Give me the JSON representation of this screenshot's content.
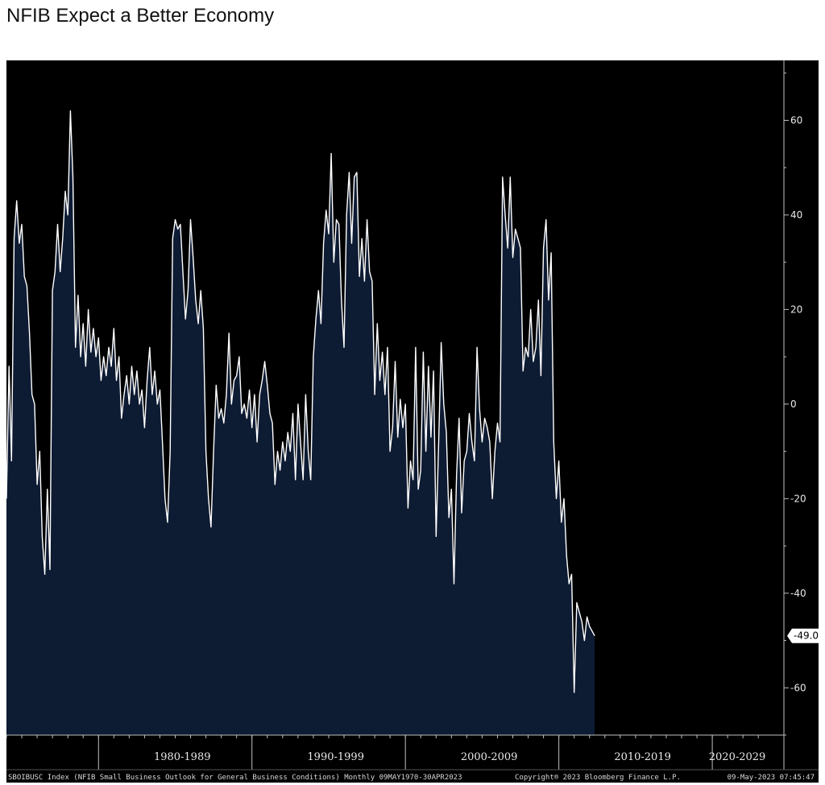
{
  "page": {
    "title": "NFIB Expect a Better Economy"
  },
  "colors": {
    "background": "#000000",
    "area_fill": "#0d1b33",
    "line": "#ffffff",
    "axis": "#bfbfbf",
    "text": "#e8e8e8",
    "last_value_box": "#ffffff"
  },
  "chart_data": {
    "type": "area",
    "title": "",
    "xlabel": "",
    "ylabel": "",
    "x_range": [
      "1974-01",
      "2023-04"
    ],
    "ylim": [
      -70,
      72
    ],
    "y_ticks": [
      -60,
      -40,
      -20,
      0,
      20,
      40,
      60
    ],
    "grid": false,
    "x_groups": [
      {
        "label": "1980-1989",
        "from": "1980-01",
        "to": "1989-12"
      },
      {
        "label": "1990-1999",
        "from": "1990-01",
        "to": "1999-12"
      },
      {
        "label": "2000-2009",
        "from": "2000-01",
        "to": "2009-12"
      },
      {
        "label": "2010-2019",
        "from": "2010-01",
        "to": "2019-12"
      },
      {
        "label": "2020-2029",
        "from": "2020-01",
        "to": "2029-12"
      }
    ],
    "last_value": {
      "label": "-49.0",
      "value": -49.0
    },
    "series": [
      {
        "values": [
          [
            "1974-01",
            -20
          ],
          [
            "1974-03",
            8
          ],
          [
            "1974-05",
            -12
          ],
          [
            "1974-07",
            35
          ],
          [
            "1974-09",
            43
          ],
          [
            "1974-11",
            34
          ],
          [
            "1975-01",
            38
          ],
          [
            "1975-03",
            27
          ],
          [
            "1975-05",
            25
          ],
          [
            "1975-07",
            15
          ],
          [
            "1975-09",
            2
          ],
          [
            "1975-11",
            0
          ],
          [
            "1976-01",
            -17
          ],
          [
            "1976-03",
            -10
          ],
          [
            "1976-05",
            -28
          ],
          [
            "1976-07",
            -36
          ],
          [
            "1976-09",
            -18
          ],
          [
            "1976-11",
            -35
          ],
          [
            "1977-01",
            24
          ],
          [
            "1977-03",
            28
          ],
          [
            "1977-05",
            38
          ],
          [
            "1977-07",
            28
          ],
          [
            "1977-09",
            35
          ],
          [
            "1977-11",
            45
          ],
          [
            "1978-01",
            40
          ],
          [
            "1978-03",
            62
          ],
          [
            "1978-05",
            48
          ],
          [
            "1978-07",
            12
          ],
          [
            "1978-09",
            23
          ],
          [
            "1978-11",
            10
          ],
          [
            "1979-01",
            17
          ],
          [
            "1979-03",
            8
          ],
          [
            "1979-05",
            20
          ],
          [
            "1979-07",
            11
          ],
          [
            "1979-09",
            16
          ],
          [
            "1979-11",
            10
          ],
          [
            "1980-01",
            14
          ],
          [
            "1980-03",
            5
          ],
          [
            "1980-05",
            10
          ],
          [
            "1980-07",
            6
          ],
          [
            "1980-09",
            12
          ],
          [
            "1980-11",
            8
          ],
          [
            "1981-01",
            16
          ],
          [
            "1981-03",
            5
          ],
          [
            "1981-05",
            10
          ],
          [
            "1981-07",
            -3
          ],
          [
            "1981-09",
            2
          ],
          [
            "1981-11",
            6
          ],
          [
            "1982-01",
            0
          ],
          [
            "1982-03",
            8
          ],
          [
            "1982-05",
            2
          ],
          [
            "1982-07",
            7
          ],
          [
            "1982-09",
            0
          ],
          [
            "1982-11",
            3
          ],
          [
            "1983-01",
            -5
          ],
          [
            "1983-03",
            5
          ],
          [
            "1983-05",
            12
          ],
          [
            "1983-07",
            2
          ],
          [
            "1983-09",
            7
          ],
          [
            "1983-11",
            0
          ],
          [
            "1984-01",
            3
          ],
          [
            "1984-03",
            -8
          ],
          [
            "1984-05",
            -20
          ],
          [
            "1984-07",
            -25
          ],
          [
            "1984-09",
            -10
          ],
          [
            "1984-11",
            35
          ],
          [
            "1985-01",
            39
          ],
          [
            "1985-03",
            37
          ],
          [
            "1985-05",
            38
          ],
          [
            "1985-07",
            28
          ],
          [
            "1985-09",
            18
          ],
          [
            "1985-11",
            24
          ],
          [
            "1986-01",
            39
          ],
          [
            "1986-03",
            31
          ],
          [
            "1986-05",
            22
          ],
          [
            "1986-07",
            17
          ],
          [
            "1986-09",
            24
          ],
          [
            "1986-11",
            16
          ],
          [
            "1987-01",
            -10
          ],
          [
            "1987-03",
            -20
          ],
          [
            "1987-05",
            -26
          ],
          [
            "1987-07",
            -10
          ],
          [
            "1987-09",
            4
          ],
          [
            "1987-11",
            -3
          ],
          [
            "1988-01",
            -1
          ],
          [
            "1988-03",
            -4
          ],
          [
            "1988-05",
            2
          ],
          [
            "1988-07",
            15
          ],
          [
            "1988-09",
            0
          ],
          [
            "1988-11",
            5
          ],
          [
            "1989-01",
            6
          ],
          [
            "1989-03",
            10
          ],
          [
            "1989-05",
            -2
          ],
          [
            "1989-07",
            0
          ],
          [
            "1989-09",
            -3
          ],
          [
            "1989-11",
            3
          ],
          [
            "1990-01",
            -5
          ],
          [
            "1990-03",
            2
          ],
          [
            "1990-05",
            -8
          ],
          [
            "1990-07",
            2
          ],
          [
            "1990-09",
            5
          ],
          [
            "1990-11",
            9
          ],
          [
            "1991-01",
            4
          ],
          [
            "1991-03",
            -2
          ],
          [
            "1991-05",
            -4
          ],
          [
            "1991-07",
            -17
          ],
          [
            "1991-09",
            -10
          ],
          [
            "1991-11",
            -14
          ],
          [
            "1992-01",
            -8
          ],
          [
            "1992-03",
            -12
          ],
          [
            "1992-05",
            -6
          ],
          [
            "1992-07",
            -10
          ],
          [
            "1992-09",
            -2
          ],
          [
            "1992-11",
            -16
          ],
          [
            "1993-01",
            0
          ],
          [
            "1993-03",
            -8
          ],
          [
            "1993-05",
            -16
          ],
          [
            "1993-07",
            2
          ],
          [
            "1993-09",
            -10
          ],
          [
            "1993-11",
            -16
          ],
          [
            "1994-01",
            10
          ],
          [
            "1994-03",
            18
          ],
          [
            "1994-05",
            24
          ],
          [
            "1994-07",
            17
          ],
          [
            "1994-09",
            34
          ],
          [
            "1994-11",
            41
          ],
          [
            "1995-01",
            36
          ],
          [
            "1995-03",
            53
          ],
          [
            "1995-05",
            30
          ],
          [
            "1995-07",
            39
          ],
          [
            "1995-09",
            38
          ],
          [
            "1995-11",
            22
          ],
          [
            "1996-01",
            12
          ],
          [
            "1996-03",
            40
          ],
          [
            "1996-05",
            49
          ],
          [
            "1996-07",
            34
          ],
          [
            "1996-09",
            48
          ],
          [
            "1996-11",
            49
          ],
          [
            "1997-01",
            27
          ],
          [
            "1997-03",
            35
          ],
          [
            "1997-05",
            26
          ],
          [
            "1997-07",
            39
          ],
          [
            "1997-09",
            28
          ],
          [
            "1997-11",
            26
          ],
          [
            "1998-01",
            2
          ],
          [
            "1998-03",
            17
          ],
          [
            "1998-05",
            5
          ],
          [
            "1998-07",
            11
          ],
          [
            "1998-09",
            2
          ],
          [
            "1998-11",
            12
          ],
          [
            "1999-01",
            -10
          ],
          [
            "1999-03",
            -5
          ],
          [
            "1999-05",
            9
          ],
          [
            "1999-07",
            -7
          ],
          [
            "1999-09",
            1
          ],
          [
            "1999-11",
            -5
          ],
          [
            "2000-01",
            0
          ],
          [
            "2000-03",
            -22
          ],
          [
            "2000-05",
            -12
          ],
          [
            "2000-07",
            -16
          ],
          [
            "2000-09",
            12
          ],
          [
            "2000-11",
            -18
          ],
          [
            "2001-01",
            -14
          ],
          [
            "2001-03",
            11
          ],
          [
            "2001-05",
            -10
          ],
          [
            "2001-07",
            8
          ],
          [
            "2001-09",
            -7
          ],
          [
            "2001-11",
            7
          ],
          [
            "2002-01",
            -28
          ],
          [
            "2002-03",
            -8
          ],
          [
            "2002-05",
            13
          ],
          [
            "2002-07",
            0
          ],
          [
            "2002-09",
            -6
          ],
          [
            "2002-11",
            -24
          ],
          [
            "2003-01",
            -18
          ],
          [
            "2003-03",
            -38
          ],
          [
            "2003-05",
            -15
          ],
          [
            "2003-07",
            -3
          ],
          [
            "2003-09",
            -23
          ],
          [
            "2003-11",
            -12
          ],
          [
            "2004-01",
            -10
          ],
          [
            "2004-03",
            -2
          ],
          [
            "2004-05",
            -8
          ],
          [
            "2004-07",
            -12
          ],
          [
            "2004-09",
            12
          ],
          [
            "2004-11",
            -1
          ],
          [
            "2005-01",
            -8
          ],
          [
            "2005-03",
            -3
          ],
          [
            "2005-05",
            -5
          ],
          [
            "2005-07",
            -8
          ],
          [
            "2005-09",
            -20
          ],
          [
            "2005-11",
            -10
          ],
          [
            "2006-01",
            -4
          ],
          [
            "2006-03",
            -8
          ],
          [
            "2006-05",
            48
          ],
          [
            "2006-07",
            40
          ],
          [
            "2006-09",
            33
          ],
          [
            "2006-11",
            48
          ],
          [
            "2007-01",
            31
          ],
          [
            "2007-03",
            37
          ],
          [
            "2007-05",
            35
          ],
          [
            "2007-07",
            33
          ],
          [
            "2007-09",
            7
          ],
          [
            "2007-11",
            12
          ],
          [
            "2008-01",
            10
          ],
          [
            "2008-03",
            20
          ],
          [
            "2008-05",
            9
          ],
          [
            "2008-07",
            12
          ],
          [
            "2008-09",
            22
          ],
          [
            "2008-11",
            6
          ],
          [
            "2009-01",
            33
          ],
          [
            "2009-03",
            39
          ],
          [
            "2009-05",
            22
          ],
          [
            "2009-07",
            32
          ],
          [
            "2009-09",
            -8
          ],
          [
            "2009-11",
            -20
          ],
          [
            "2010-01",
            -12
          ],
          [
            "2010-03",
            -25
          ],
          [
            "2010-05",
            -20
          ],
          [
            "2010-07",
            -32
          ],
          [
            "2010-09",
            -38
          ],
          [
            "2010-11",
            -36
          ],
          [
            "2011-01",
            -61
          ],
          [
            "2011-03",
            -42
          ],
          [
            "2011-05",
            -44
          ],
          [
            "2011-07",
            -46
          ],
          [
            "2011-09",
            -50
          ],
          [
            "2011-11",
            -45
          ],
          [
            "2012-01",
            -47
          ],
          [
            "2012-03",
            -48
          ],
          [
            "2012-05",
            -49
          ]
        ]
      }
    ]
  },
  "footer": {
    "left": "SBOIBUSC Index (NFIB Small Business Outlook for General Business Conditions)  Monthly 09MAY1970-30APR2023",
    "center": "Copyright® 2023 Bloomberg Finance L.P.",
    "right": "09-May-2023 07:45:47"
  }
}
